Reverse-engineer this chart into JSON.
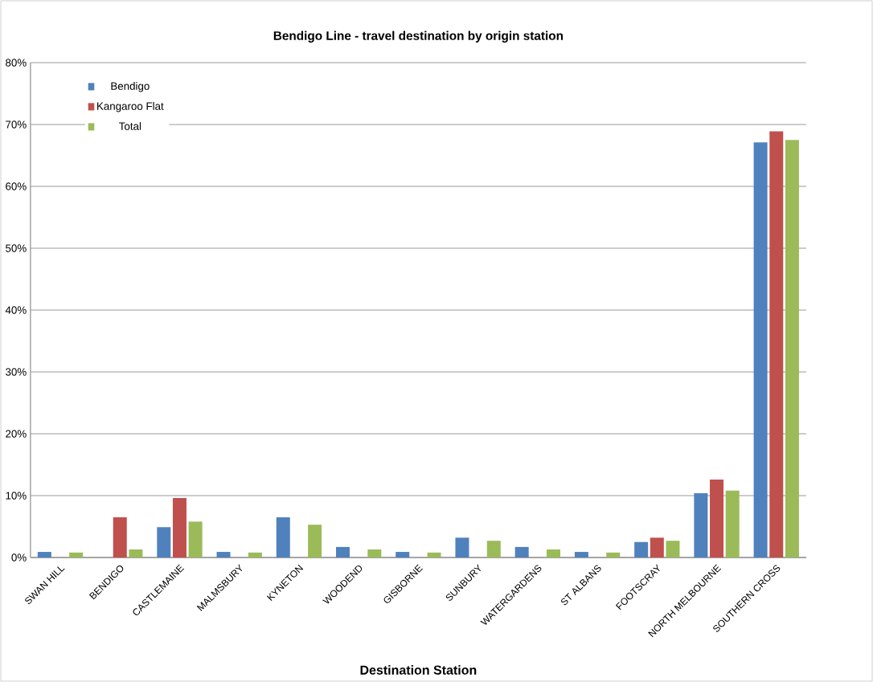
{
  "chart_data": {
    "type": "bar",
    "title": "Bendigo Line - travel destination by origin station",
    "xlabel": "Destination Station",
    "categories": [
      "SWAN HILL",
      "BENDIGO",
      "CASTLEMAINE",
      "MALMSBURY",
      "KYNETON",
      "WOODEND",
      "GISBORNE",
      "SUNBURY",
      "WATERGARDENS",
      "ST ALBANS",
      "FOOTSCRAY",
      "NORTH MELBOURNE",
      "SOUTHERN CROSS"
    ],
    "series": [
      {
        "name": "Bendigo",
        "color": "#4f81bd",
        "values": [
          0.9,
          0,
          4.9,
          0.9,
          6.5,
          1.7,
          0.9,
          3.2,
          1.7,
          0.9,
          2.5,
          10.4,
          67.1
        ]
      },
      {
        "name": "Kangaroo Flat",
        "color": "#c0504d",
        "values": [
          0,
          6.5,
          9.6,
          0,
          0,
          0,
          0,
          0,
          0,
          0,
          3.2,
          12.6,
          68.9
        ]
      },
      {
        "name": "Total",
        "color": "#9bbb59",
        "values": [
          0.8,
          1.3,
          5.8,
          0.8,
          5.3,
          1.3,
          0.8,
          2.7,
          1.3,
          0.8,
          2.7,
          10.8,
          67.5
        ]
      }
    ],
    "ylim": [
      0,
      80
    ],
    "yticks": [
      {
        "value": 0,
        "label": "0%"
      },
      {
        "value": 10,
        "label": "10%"
      },
      {
        "value": 20,
        "label": "20%"
      },
      {
        "value": 30,
        "label": "30%"
      },
      {
        "value": 40,
        "label": "40%"
      },
      {
        "value": 50,
        "label": "50%"
      },
      {
        "value": 60,
        "label": "60%"
      },
      {
        "value": 70,
        "label": "70%"
      },
      {
        "value": 80,
        "label": "80%"
      }
    ],
    "grid": "y",
    "legend": "top left"
  }
}
